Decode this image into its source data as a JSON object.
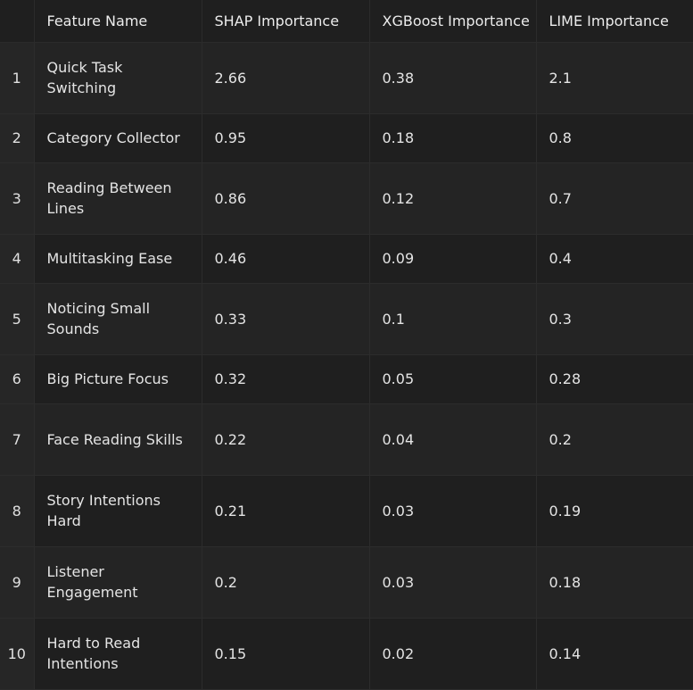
{
  "table": {
    "columns": [
      "",
      "Feature Name",
      "SHAP Importance",
      "XGBoost Importance",
      "LIME Importance"
    ],
    "rows": [
      {
        "index": "1",
        "feature": "Quick Task Switching",
        "shap": "2.66",
        "xgboost": "0.38",
        "lime": "2.1"
      },
      {
        "index": "2",
        "feature": "Category Collector",
        "shap": "0.95",
        "xgboost": "0.18",
        "lime": "0.8"
      },
      {
        "index": "3",
        "feature": "Reading Between Lines",
        "shap": "0.86",
        "xgboost": "0.12",
        "lime": "0.7"
      },
      {
        "index": "4",
        "feature": "Multitasking Ease",
        "shap": "0.46",
        "xgboost": "0.09",
        "lime": "0.4"
      },
      {
        "index": "5",
        "feature": "Noticing Small Sounds",
        "shap": "0.33",
        "xgboost": "0.1",
        "lime": "0.3"
      },
      {
        "index": "6",
        "feature": "Big Picture Focus",
        "shap": "0.32",
        "xgboost": "0.05",
        "lime": "0.28"
      },
      {
        "index": "7",
        "feature": "Face Reading Skills",
        "shap": "0.22",
        "xgboost": "0.04",
        "lime": "0.2"
      },
      {
        "index": "8",
        "feature": "Story Intentions Hard",
        "shap": "0.21",
        "xgboost": "0.03",
        "lime": "0.19"
      },
      {
        "index": "9",
        "feature": "Listener Engagement",
        "shap": "0.2",
        "xgboost": "0.03",
        "lime": "0.18"
      },
      {
        "index": "10",
        "feature": "Hard to Read Intentions",
        "shap": "0.15",
        "xgboost": "0.02",
        "lime": "0.14"
      }
    ]
  }
}
